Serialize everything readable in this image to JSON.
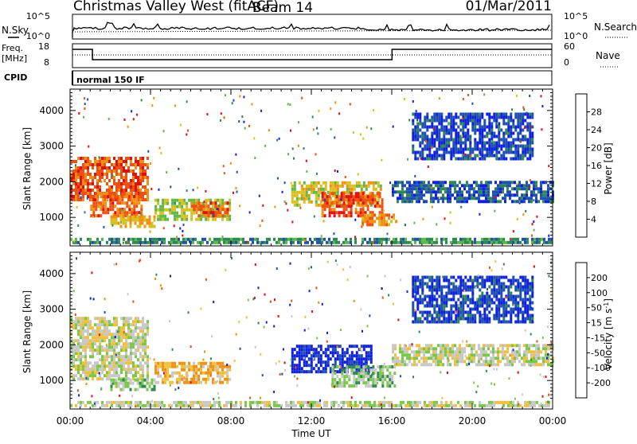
{
  "header": {
    "station": "Christmas Valley West (fitACF)",
    "beam": "Beam 14",
    "date": "01/Mar/2011"
  },
  "top_panels": {
    "nsky_label": "N.Sky",
    "nsky_ticks": [
      "10^5",
      "10^0"
    ],
    "nsearch_label": "N.Search",
    "nsearch_ticks": [
      "10^5",
      "10^0"
    ],
    "freq_label": "Freq.",
    "freq_unit": "[MHz]",
    "freq_ticks": [
      "18",
      "8"
    ],
    "nave_label": "Nave",
    "nave_ticks": [
      "60",
      "0"
    ],
    "cpid_label": "CPID",
    "cpid_value": "normal 150 IF"
  },
  "axes": {
    "xlabel": "Time UT",
    "x_ticks": [
      "00:00",
      "04:00",
      "08:00",
      "12:00",
      "16:00",
      "20:00",
      "00:00"
    ],
    "ylabel": "Slant Range [km]",
    "y_ticks": [
      "1000",
      "2000",
      "3000",
      "4000"
    ]
  },
  "colorbars": {
    "power": {
      "label": "Power [dB]",
      "ticks": [
        "4",
        "8",
        "12",
        "16",
        "20",
        "24",
        "28"
      ]
    },
    "velocity": {
      "label": "Velocity [m s",
      "label_sup": "-1",
      "label_end": "]",
      "ticks": [
        "-200",
        "-100",
        "-50",
        "-15",
        "15",
        "50",
        "100",
        "200"
      ]
    }
  },
  "colors": {
    "power_scale": [
      "#1020e0",
      "#2050b0",
      "#2e8a50",
      "#5cb84a",
      "#d8c020",
      "#f09010",
      "#f05010",
      "#e01010"
    ],
    "velocity_scale": [
      "#e01010",
      "#f05010",
      "#f09010",
      "#f0c040",
      "#c8c8c8",
      "#7ac848",
      "#2e8a50",
      "#2050b0",
      "#1020e0"
    ]
  },
  "chart_data": [
    {
      "type": "heatmap",
      "name": "power",
      "xlim": [
        0,
        24
      ],
      "ylim": [
        200,
        4600
      ],
      "x_unit": "hours UT",
      "y_unit": "km",
      "clim": [
        0,
        32
      ],
      "regions": [
        {
          "t": [
            0.0,
            3.9
          ],
          "r": [
            1450,
            2700
          ],
          "value": 26
        },
        {
          "t": [
            1.0,
            3.5
          ],
          "r": [
            1000,
            1700
          ],
          "value": 25
        },
        {
          "t": [
            2.0,
            4.2
          ],
          "r": [
            700,
            1050
          ],
          "value": 20
        },
        {
          "t": [
            4.2,
            8.0
          ],
          "r": [
            900,
            1500
          ],
          "value": 16
        },
        {
          "t": [
            6.0,
            7.8
          ],
          "r": [
            1000,
            1400
          ],
          "value": 25
        },
        {
          "t": [
            11.0,
            15.5
          ],
          "r": [
            1300,
            2000
          ],
          "value": 18
        },
        {
          "t": [
            12.5,
            15.5
          ],
          "r": [
            1000,
            1700
          ],
          "value": 26
        },
        {
          "t": [
            14.5,
            16.2
          ],
          "r": [
            750,
            1100
          ],
          "value": 22
        },
        {
          "t": [
            16.0,
            24.0
          ],
          "r": [
            1400,
            2000
          ],
          "value": 6
        },
        {
          "t": [
            17.0,
            23.0
          ],
          "r": [
            2600,
            3900
          ],
          "value": 5
        },
        {
          "t": [
            0.0,
            24.0
          ],
          "r": [
            250,
            400
          ],
          "value": 10
        }
      ]
    },
    {
      "type": "heatmap",
      "name": "velocity",
      "xlim": [
        0,
        24
      ],
      "ylim": [
        200,
        4600
      ],
      "x_unit": "hours UT",
      "y_unit": "km",
      "clim": [
        -200,
        200
      ],
      "regions": [
        {
          "t": [
            0.0,
            3.9
          ],
          "r": [
            1000,
            2700
          ],
          "value": 0
        },
        {
          "t": [
            2.0,
            4.2
          ],
          "r": [
            700,
            1050
          ],
          "value": 40
        },
        {
          "t": [
            4.2,
            8.0
          ],
          "r": [
            900,
            1500
          ],
          "value": -60
        },
        {
          "t": [
            11.0,
            15.0
          ],
          "r": [
            1200,
            1950
          ],
          "value": 180
        },
        {
          "t": [
            13.0,
            16.2
          ],
          "r": [
            800,
            1400
          ],
          "value": 40
        },
        {
          "t": [
            16.0,
            24.0
          ],
          "r": [
            1400,
            2000
          ],
          "value": 0
        },
        {
          "t": [
            17.0,
            23.0
          ],
          "r": [
            2600,
            3900
          ],
          "value": 150
        },
        {
          "t": [
            0.0,
            24.0
          ],
          "r": [
            250,
            400
          ],
          "value": 10
        }
      ]
    }
  ]
}
